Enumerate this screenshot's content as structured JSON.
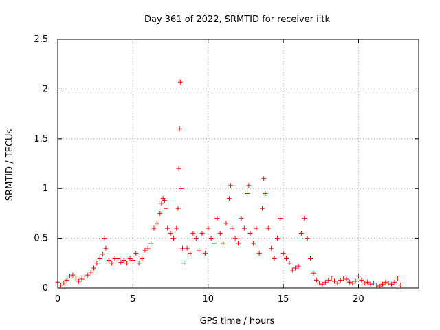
{
  "chart_data": {
    "type": "scatter",
    "title": "Day 361 of 2022, SRMTID for receiver iitk",
    "xlabel": "GPS time / hours",
    "ylabel": "SRMTID / TECUs",
    "xlim": [
      0,
      24
    ],
    "ylim": [
      0,
      2.5
    ],
    "xticks": [
      0,
      5,
      10,
      15,
      20
    ],
    "yticks": [
      0,
      0.5,
      1,
      1.5,
      2,
      2.5
    ],
    "ytick_labels": [
      "0",
      "0.5",
      "1",
      "1.5",
      "2",
      "2.5"
    ],
    "grid": true,
    "marker": "+",
    "color": "#ff0000",
    "series": [
      {
        "name": "SRMTID",
        "x": [
          0.0,
          0.2,
          0.4,
          0.6,
          0.8,
          1.0,
          1.2,
          1.4,
          1.6,
          1.8,
          2.0,
          2.2,
          2.4,
          2.6,
          2.8,
          3.0,
          3.1,
          3.2,
          3.4,
          3.6,
          3.8,
          4.0,
          4.2,
          4.4,
          4.6,
          4.8,
          5.0,
          5.2,
          5.4,
          5.6,
          5.8,
          6.0,
          6.2,
          6.4,
          6.6,
          6.8,
          6.9,
          7.0,
          7.1,
          7.2,
          7.3,
          7.5,
          7.7,
          7.9,
          8.0,
          8.05,
          8.1,
          8.15,
          8.2,
          8.3,
          8.4,
          8.6,
          8.8,
          9.0,
          9.2,
          9.4,
          9.6,
          9.8,
          10.0,
          10.2,
          10.4,
          10.6,
          10.8,
          11.0,
          11.2,
          11.4,
          11.5,
          11.6,
          11.8,
          12.0,
          12.2,
          12.4,
          12.6,
          12.7,
          12.8,
          13.0,
          13.2,
          13.4,
          13.6,
          13.7,
          13.8,
          14.0,
          14.2,
          14.4,
          14.6,
          14.8,
          15.0,
          15.2,
          15.4,
          15.6,
          15.8,
          16.0,
          16.2,
          16.4,
          16.6,
          16.8,
          17.0,
          17.2,
          17.4,
          17.6,
          17.8,
          18.0,
          18.2,
          18.4,
          18.6,
          18.8,
          19.0,
          19.2,
          19.4,
          19.6,
          19.8,
          20.0,
          20.2,
          20.4,
          20.6,
          20.8,
          21.0,
          21.2,
          21.4,
          21.6,
          21.8,
          22.0,
          22.2,
          22.4,
          22.6,
          22.8
        ],
        "y": [
          0.06,
          0.03,
          0.05,
          0.08,
          0.12,
          0.13,
          0.1,
          0.07,
          0.09,
          0.12,
          0.13,
          0.16,
          0.2,
          0.25,
          0.3,
          0.34,
          0.5,
          0.4,
          0.28,
          0.25,
          0.3,
          0.3,
          0.26,
          0.28,
          0.25,
          0.3,
          0.28,
          0.35,
          0.25,
          0.3,
          0.38,
          0.4,
          0.45,
          0.6,
          0.65,
          0.75,
          0.85,
          0.9,
          0.88,
          0.8,
          0.6,
          0.55,
          0.5,
          0.6,
          0.8,
          1.2,
          1.6,
          2.07,
          1.0,
          0.4,
          0.25,
          0.4,
          0.35,
          0.55,
          0.5,
          0.38,
          0.55,
          0.35,
          0.6,
          0.5,
          0.45,
          0.7,
          0.55,
          0.45,
          0.65,
          0.9,
          1.03,
          0.6,
          0.5,
          0.45,
          0.7,
          0.6,
          0.95,
          1.03,
          0.55,
          0.45,
          0.6,
          0.35,
          0.8,
          1.1,
          0.95,
          0.6,
          0.4,
          0.3,
          0.5,
          0.7,
          0.35,
          0.3,
          0.25,
          0.18,
          0.2,
          0.22,
          0.55,
          0.7,
          0.5,
          0.3,
          0.15,
          0.08,
          0.05,
          0.04,
          0.06,
          0.08,
          0.1,
          0.07,
          0.05,
          0.08,
          0.1,
          0.09,
          0.06,
          0.05,
          0.07,
          0.12,
          0.08,
          0.05,
          0.06,
          0.04,
          0.05,
          0.03,
          0.02,
          0.04,
          0.06,
          0.05,
          0.04,
          0.06,
          0.1,
          0.03
        ]
      }
    ]
  }
}
